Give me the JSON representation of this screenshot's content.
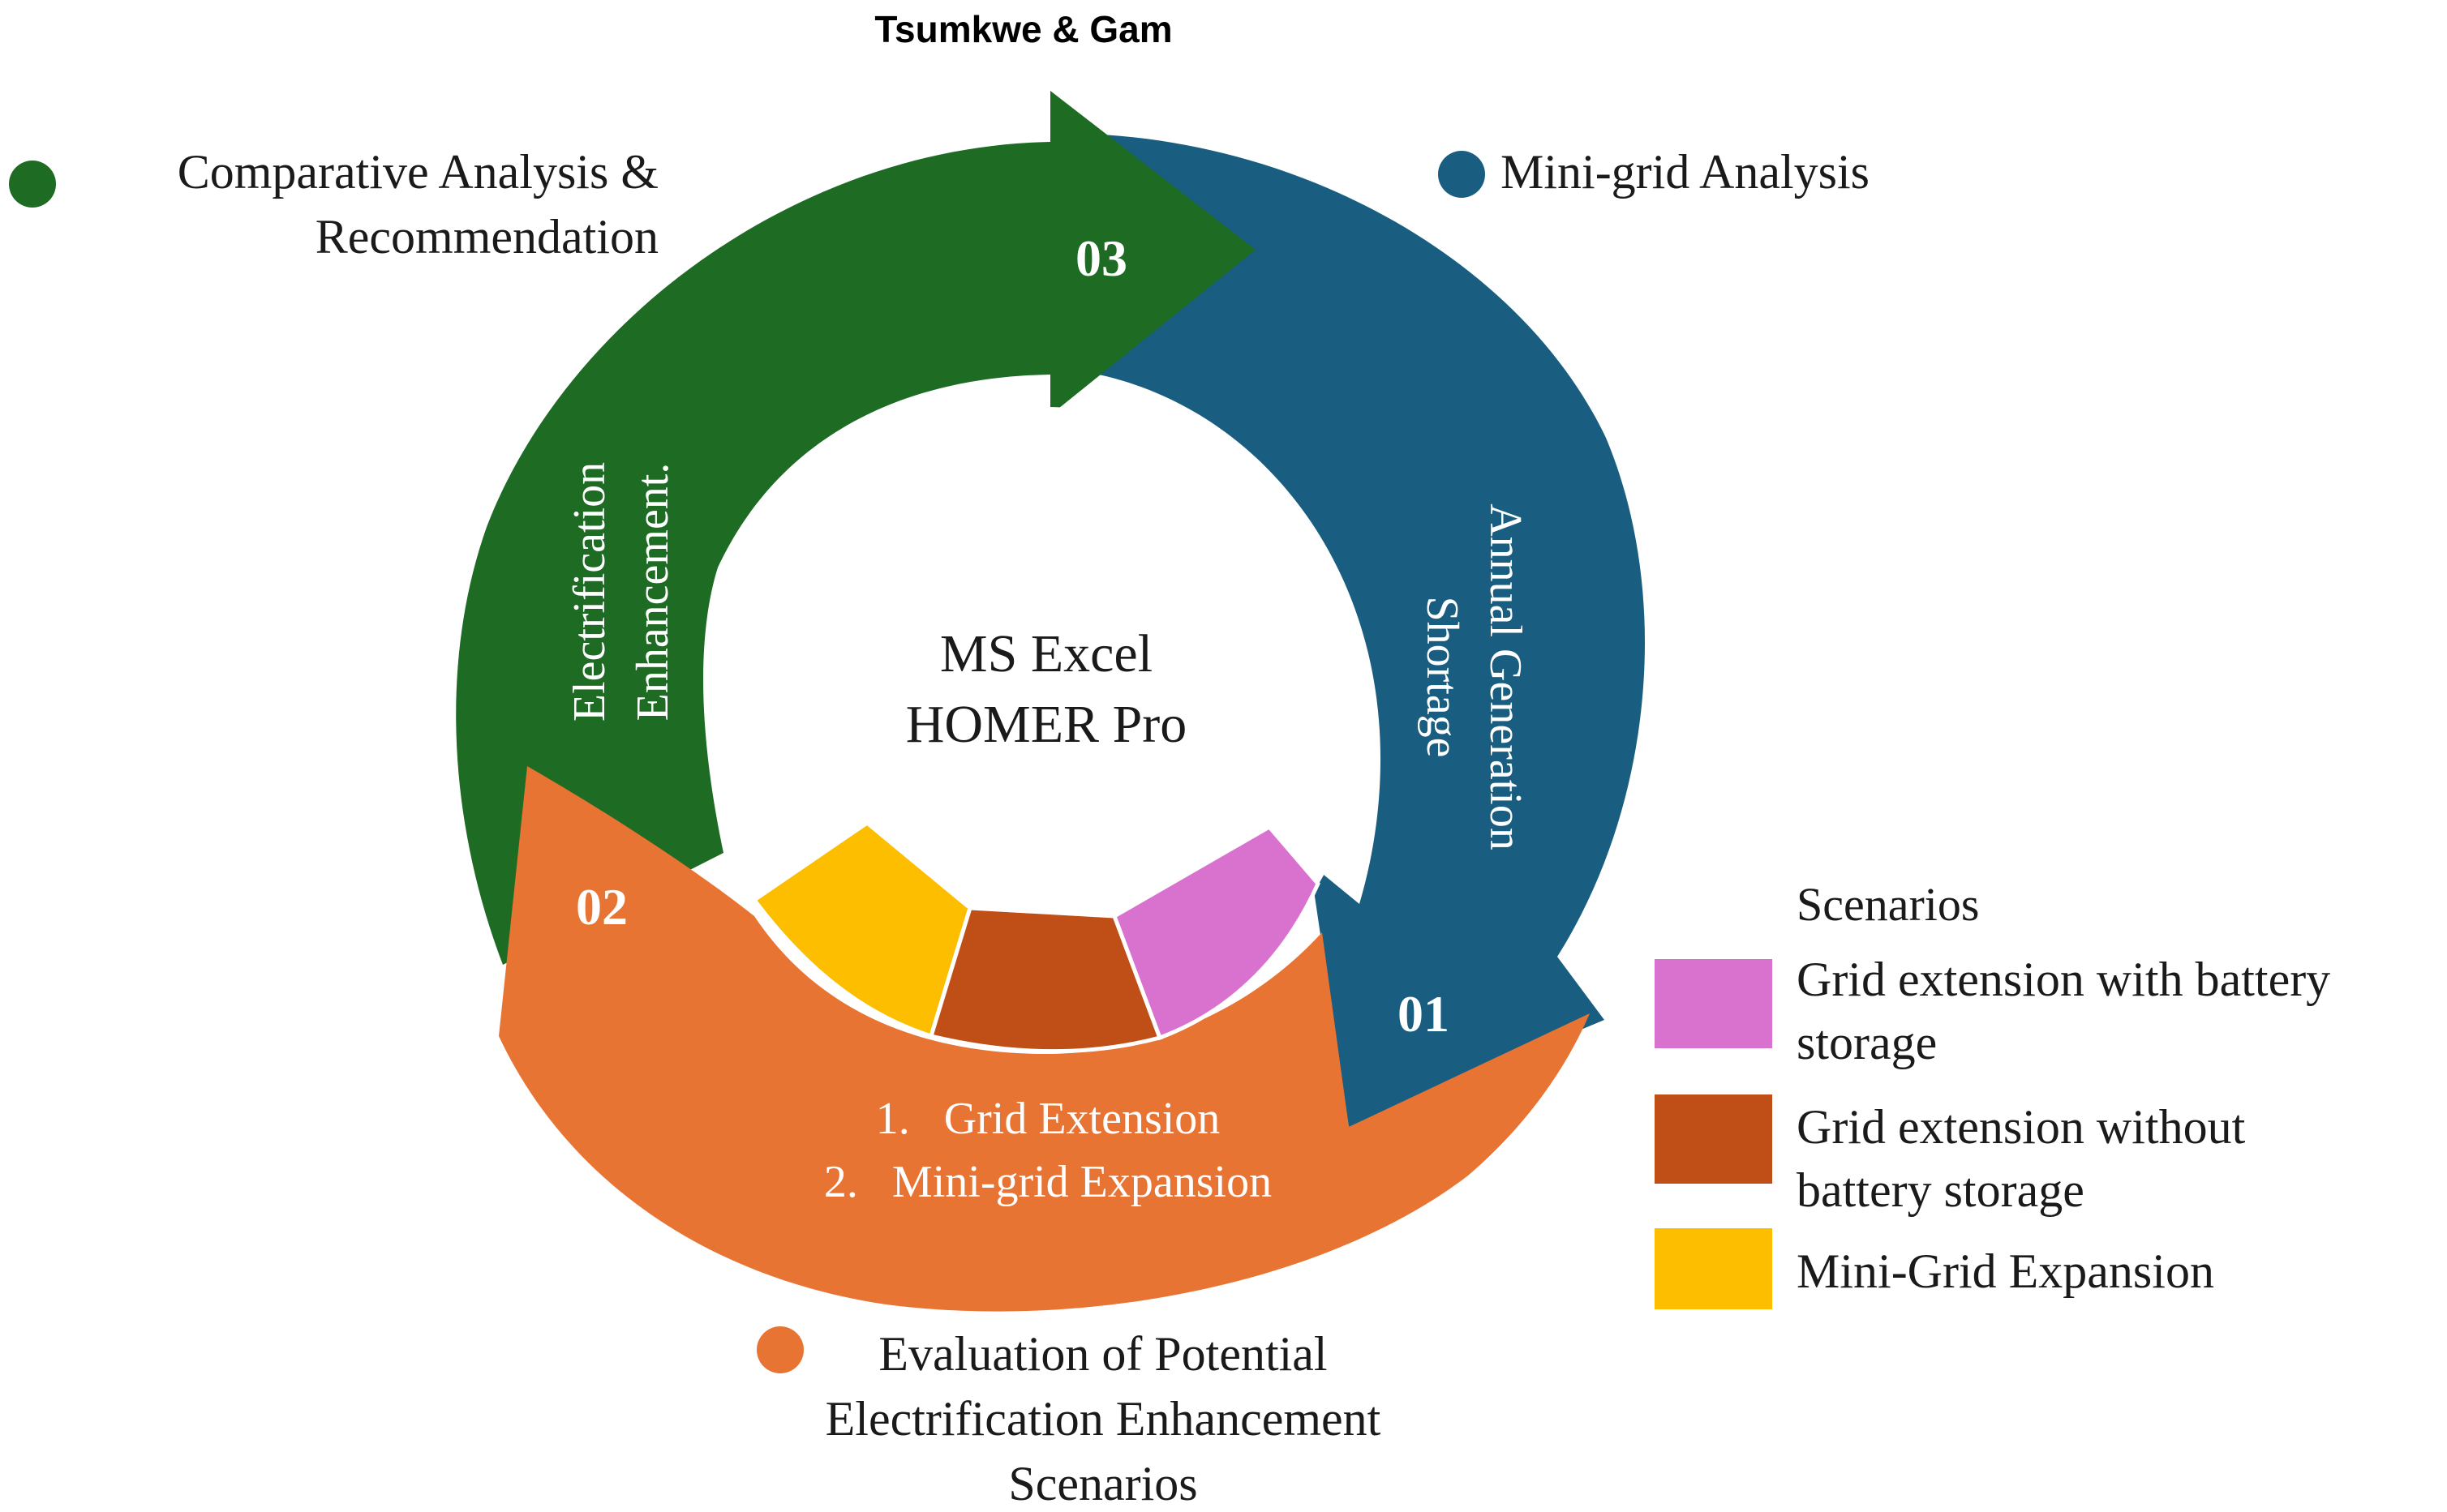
{
  "title": "Tsumkwe & Gam",
  "center": {
    "line1": "MS Excel",
    "line2": "HOMER Pro"
  },
  "stages": [
    {
      "number": "03",
      "name": "Comparative Analysis & Recommendation",
      "name_lines": [
        "Comparative Analysis &",
        "Recommendation"
      ],
      "arc_text": [
        "Electrification",
        "Enhancement."
      ],
      "color": "#1e6b24"
    },
    {
      "number": "01",
      "name": "Mini-grid Analysis",
      "name_lines": [
        "Mini-grid Analysis"
      ],
      "arc_text": [
        "Annual Generation",
        "Shortage"
      ],
      "color": "#195e80"
    },
    {
      "number": "02",
      "name": "Evaluation of Potential Electrification Enhancement Scenarios",
      "name_lines": [
        "Evaluation of Potential",
        "Electrification Enhancement",
        "Scenarios"
      ],
      "arc_text": [
        "1.   Grid Extension",
        "2.   Mini-grid Expansion"
      ],
      "color": "#e87434"
    }
  ],
  "legend": {
    "title": "Scenarios",
    "items": [
      {
        "lines": [
          "Grid extension with battery",
          "storage"
        ],
        "color": "#d972cf"
      },
      {
        "lines": [
          "Grid extension without",
          "battery storage"
        ],
        "color": "#c04f17"
      },
      {
        "lines": [
          "Mini-Grid Expansion"
        ],
        "color": "#fdbe00"
      }
    ]
  }
}
